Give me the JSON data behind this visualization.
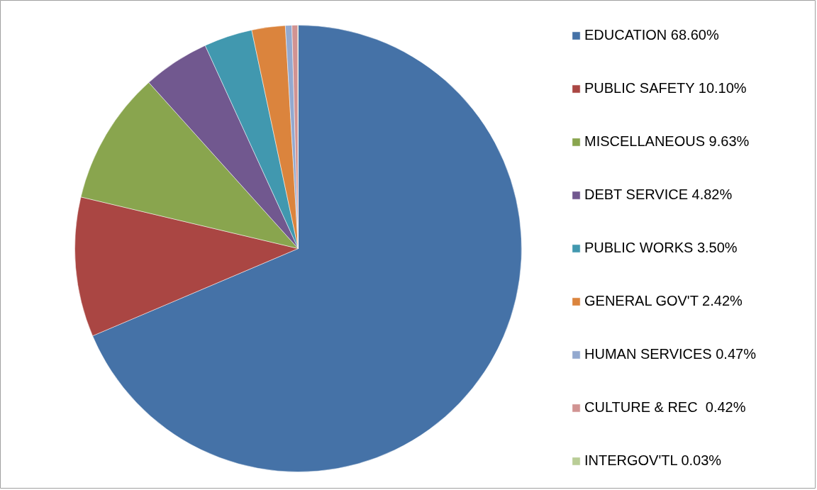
{
  "chart_data": {
    "type": "pie",
    "categories": [
      "EDUCATION 68.60%",
      "PUBLIC SAFETY 10.10%",
      "MISCELLANEOUS 9.63%",
      "DEBT SERVICE 4.82%",
      "PUBLIC WORKS 3.50%",
      "GENERAL GOV'T 2.42%",
      "HUMAN SERVICES 0.47%",
      "CULTURE & REC  0.42%",
      "INTERGOV'TL 0.03%"
    ],
    "values": [
      68.6,
      10.1,
      9.63,
      4.82,
      3.5,
      2.42,
      0.47,
      0.42,
      0.03
    ],
    "colors": [
      "#4572a7",
      "#aa4643",
      "#89a54e",
      "#71588f",
      "#4198af",
      "#db843d",
      "#93a9cf",
      "#d19392",
      "#b9cd96"
    ],
    "legend": "right"
  }
}
